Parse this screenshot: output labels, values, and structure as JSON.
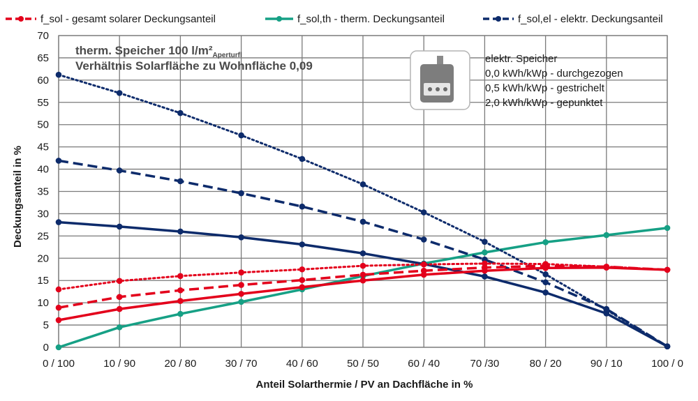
{
  "chart_data": {
    "type": "line",
    "xlabel": "Anteil Solarthermie / PV an Dachfläche in %",
    "ylabel": "Deckungsanteil  in %",
    "ylim": [
      0,
      70
    ],
    "yticks": [
      0,
      5,
      10,
      15,
      20,
      25,
      30,
      35,
      40,
      45,
      50,
      55,
      60,
      65,
      70
    ],
    "categories": [
      "0 / 100",
      "10 / 90",
      "20 / 80",
      "30 / 70",
      "40 / 60",
      "50 / 50",
      "60 / 40",
      "70 /30",
      "80 / 20",
      "90 / 10",
      "100 / 0"
    ],
    "grid": true,
    "legend_position": "top",
    "legend": [
      {
        "label": "f_sol - gesamt solarer Deckungsanteil",
        "color": "#e3001b"
      },
      {
        "label": "f_sol,th - therm. Deckungsanteil",
        "color": "#16a085"
      },
      {
        "label": "f_sol,el - elektr. Deckungsanteil",
        "color": "#0d2b6b"
      }
    ],
    "annotation": {
      "line1_main": "therm. Speicher 100 l/m²",
      "line1_sub": "Aperturfl",
      "line2": "Verhältnis Solarfläche zu Wohnfläche 0,09"
    },
    "storage_note": {
      "icon": "battery-storage-icon",
      "lines": [
        "elektr. Speicher",
        "0,0 kWh/kWp - durchgezogen",
        "0,5 kWh/kWp - gestrichelt",
        "2,0 kWh/kWp - gepunktet"
      ]
    },
    "series": [
      {
        "name": "f_sol,th - therm. Deckungsanteil",
        "color": "#16a085",
        "dash": "solid",
        "values": [
          0,
          4.5,
          7.5,
          10.2,
          13.0,
          16.0,
          18.8,
          21.3,
          23.6,
          25.2,
          26.8
        ]
      },
      {
        "name": "f_sol,el - elektr. Deckungsanteil",
        "color": "#0d2b6b",
        "dash": "solid",
        "values": [
          28.1,
          27.1,
          26.0,
          24.7,
          23.1,
          21.1,
          18.7,
          15.9,
          12.3,
          7.6,
          0.2
        ]
      },
      {
        "name": "f_sol,el - elektr. Deckungsanteil",
        "color": "#0d2b6b",
        "dash": "dashed",
        "values": [
          41.9,
          39.7,
          37.3,
          34.6,
          31.6,
          28.2,
          24.2,
          19.7,
          14.6,
          8.6,
          0.2
        ]
      },
      {
        "name": "f_sol,el - elektr. Deckungsanteil",
        "color": "#0d2b6b",
        "dash": "dotted",
        "values": [
          61.2,
          57.1,
          52.6,
          47.6,
          42.3,
          36.6,
          30.3,
          23.7,
          16.4,
          8.4,
          0.2
        ]
      },
      {
        "name": "f_sol - gesamt solarer Deckungsanteil",
        "color": "#e3001b",
        "dash": "solid",
        "values": [
          6.1,
          8.6,
          10.4,
          12.0,
          13.5,
          15.0,
          16.3,
          17.2,
          17.8,
          17.9,
          17.4
        ]
      },
      {
        "name": "f_sol - gesamt solarer Deckungsanteil",
        "color": "#e3001b",
        "dash": "dashed",
        "values": [
          8.9,
          11.3,
          12.8,
          14.0,
          15.1,
          16.3,
          17.2,
          17.9,
          18.3,
          18.1,
          17.4
        ]
      },
      {
        "name": "f_sol - gesamt solarer Deckungsanteil",
        "color": "#e3001b",
        "dash": "dotted",
        "values": [
          13.0,
          14.9,
          16.0,
          16.8,
          17.5,
          18.3,
          18.6,
          18.8,
          18.7,
          18.1,
          17.4
        ]
      }
    ]
  }
}
